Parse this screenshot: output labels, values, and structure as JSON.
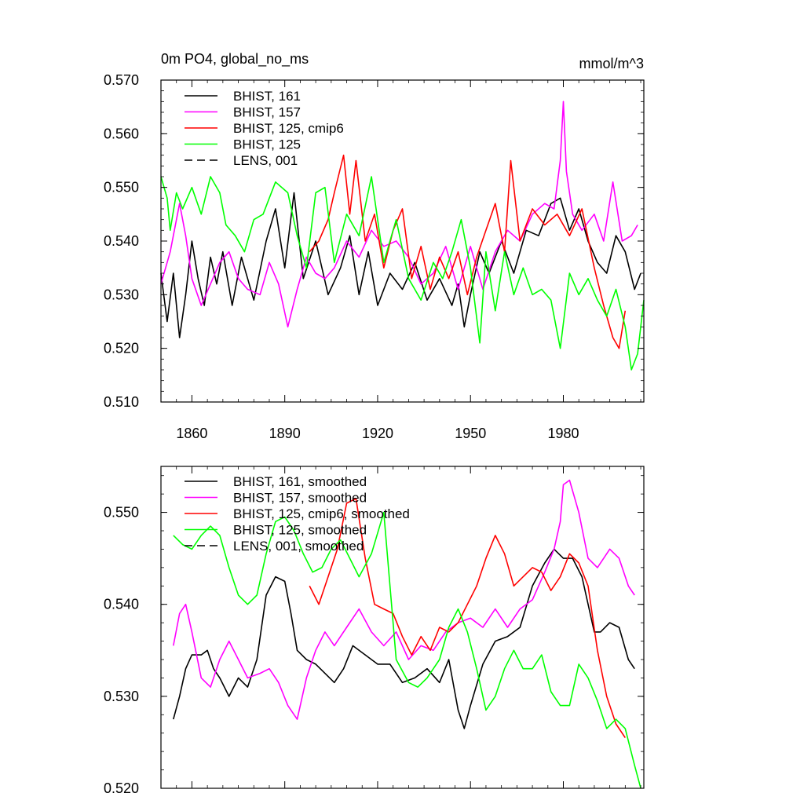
{
  "chart_data": [
    {
      "type": "line",
      "title": "0m PO4, global_no_ms",
      "units_label": "mmol/m^3",
      "xlim": [
        1850,
        2006
      ],
      "ylim": [
        0.51,
        0.57
      ],
      "yticks": [
        "0.510",
        "0.520",
        "0.530",
        "0.540",
        "0.550",
        "0.560",
        "0.570"
      ],
      "xticks": [
        "1860",
        "1890",
        "1920",
        "1950",
        "1980"
      ],
      "legend": {
        "position": "top-left"
      },
      "series": [
        {
          "name": "BHIST, 161",
          "color": "#000000",
          "dash": "solid",
          "x": [
            1850,
            1852,
            1854,
            1856,
            1858,
            1860,
            1862,
            1864,
            1866,
            1868,
            1870,
            1873,
            1876,
            1880,
            1884,
            1887,
            1890,
            1893,
            1896,
            1900,
            1904,
            1908,
            1911,
            1914,
            1917,
            1920,
            1924,
            1928,
            1932,
            1936,
            1940,
            1944,
            1946,
            1948,
            1950,
            1953,
            1956,
            1960,
            1964,
            1968,
            1972,
            1976,
            1979,
            1982,
            1985,
            1988,
            1991,
            1994,
            1997,
            2000,
            2003,
            2005
          ],
          "y": [
            0.534,
            0.525,
            0.534,
            0.522,
            0.53,
            0.54,
            0.533,
            0.528,
            0.537,
            0.532,
            0.538,
            0.528,
            0.537,
            0.529,
            0.54,
            0.546,
            0.535,
            0.549,
            0.533,
            0.54,
            0.53,
            0.535,
            0.541,
            0.53,
            0.538,
            0.528,
            0.534,
            0.531,
            0.536,
            0.529,
            0.533,
            0.528,
            0.532,
            0.524,
            0.53,
            0.538,
            0.534,
            0.54,
            0.534,
            0.542,
            0.541,
            0.547,
            0.548,
            0.542,
            0.546,
            0.54,
            0.536,
            0.534,
            0.541,
            0.538,
            0.531,
            0.534
          ]
        },
        {
          "name": "BHIST, 157",
          "color": "#ff00ff",
          "dash": "solid",
          "x": [
            1850,
            1853,
            1856,
            1858,
            1860,
            1863,
            1866,
            1869,
            1872,
            1875,
            1878,
            1882,
            1885,
            1888,
            1891,
            1894,
            1897,
            1900,
            1903,
            1906,
            1910,
            1914,
            1918,
            1922,
            1926,
            1930,
            1934,
            1938,
            1942,
            1946,
            1950,
            1954,
            1958,
            1962,
            1966,
            1970,
            1974,
            1977,
            1979,
            1980,
            1981,
            1983,
            1986,
            1990,
            1993,
            1996,
            1999,
            2002,
            2004
          ],
          "y": [
            0.532,
            0.538,
            0.547,
            0.541,
            0.533,
            0.528,
            0.532,
            0.536,
            0.538,
            0.533,
            0.531,
            0.53,
            0.536,
            0.532,
            0.524,
            0.531,
            0.537,
            0.534,
            0.533,
            0.535,
            0.54,
            0.537,
            0.542,
            0.539,
            0.54,
            0.537,
            0.532,
            0.534,
            0.539,
            0.531,
            0.539,
            0.531,
            0.538,
            0.542,
            0.54,
            0.545,
            0.547,
            0.546,
            0.555,
            0.566,
            0.553,
            0.545,
            0.542,
            0.545,
            0.54,
            0.551,
            0.54,
            0.541,
            0.543
          ]
        },
        {
          "name": "BHIST, 125, cmip6",
          "color": "#ff0000",
          "dash": "solid",
          "x": [
            1898,
            1901,
            1904,
            1906,
            1909,
            1911,
            1913,
            1916,
            1919,
            1922,
            1925,
            1928,
            1931,
            1934,
            1937,
            1940,
            1943,
            1946,
            1949,
            1952,
            1955,
            1958,
            1961,
            1963,
            1966,
            1970,
            1974,
            1978,
            1982,
            1986,
            1990,
            1993,
            1996,
            1998,
            2000
          ],
          "y": [
            0.538,
            0.54,
            0.544,
            0.549,
            0.556,
            0.545,
            0.555,
            0.54,
            0.545,
            0.535,
            0.542,
            0.546,
            0.533,
            0.539,
            0.531,
            0.537,
            0.533,
            0.538,
            0.53,
            0.537,
            0.542,
            0.547,
            0.538,
            0.555,
            0.54,
            0.546,
            0.543,
            0.545,
            0.541,
            0.546,
            0.535,
            0.528,
            0.522,
            0.52,
            0.527
          ]
        },
        {
          "name": "BHIST, 125",
          "color": "#00ff00",
          "dash": "solid",
          "x": [
            1850,
            1852,
            1853,
            1855,
            1857,
            1860,
            1863,
            1866,
            1869,
            1871,
            1874,
            1877,
            1880,
            1883,
            1887,
            1891,
            1894,
            1897,
            1900,
            1903,
            1906,
            1910,
            1914,
            1918,
            1922,
            1926,
            1930,
            1934,
            1938,
            1941,
            1944,
            1947,
            1950,
            1953,
            1955,
            1958,
            1961,
            1964,
            1967,
            1970,
            1973,
            1976,
            1979,
            1982,
            1985,
            1988,
            1991,
            1994,
            1997,
            2000,
            2002,
            2004,
            2006
          ],
          "y": [
            0.552,
            0.548,
            0.542,
            0.549,
            0.546,
            0.55,
            0.545,
            0.552,
            0.549,
            0.543,
            0.541,
            0.538,
            0.544,
            0.545,
            0.551,
            0.549,
            0.541,
            0.535,
            0.549,
            0.55,
            0.536,
            0.545,
            0.541,
            0.552,
            0.536,
            0.544,
            0.533,
            0.529,
            0.536,
            0.533,
            0.538,
            0.544,
            0.535,
            0.521,
            0.538,
            0.527,
            0.538,
            0.53,
            0.535,
            0.53,
            0.531,
            0.529,
            0.52,
            0.534,
            0.53,
            0.533,
            0.529,
            0.526,
            0.531,
            0.524,
            0.516,
            0.519,
            0.529
          ]
        },
        {
          "name": "LENS, 001",
          "color": "#000000",
          "dash": "dashed",
          "x": [],
          "y": []
        }
      ]
    },
    {
      "type": "line",
      "title": "",
      "xlim": [
        1850,
        2006
      ],
      "ylim": [
        0.52,
        0.555
      ],
      "yticks": [
        "0.520",
        "0.530",
        "0.540",
        "0.550"
      ],
      "xticks": [],
      "legend": {
        "position": "top-left"
      },
      "series": [
        {
          "name": "BHIST, 161, smoothed",
          "color": "#000000",
          "dash": "solid",
          "x": [
            1854,
            1856,
            1858,
            1860,
            1863,
            1865,
            1867,
            1869,
            1872,
            1875,
            1878,
            1881,
            1884,
            1887,
            1890,
            1892,
            1894,
            1897,
            1900,
            1903,
            1906,
            1909,
            1912,
            1916,
            1920,
            1924,
            1928,
            1932,
            1936,
            1940,
            1943,
            1946,
            1948,
            1950,
            1954,
            1958,
            1962,
            1966,
            1970,
            1974,
            1977,
            1980,
            1983,
            1986,
            1990,
            1992,
            1995,
            1998,
            2001,
            2003
          ],
          "y": [
            0.5275,
            0.53,
            0.533,
            0.5345,
            0.5345,
            0.535,
            0.533,
            0.532,
            0.53,
            0.532,
            0.531,
            0.534,
            0.541,
            0.543,
            0.5425,
            0.539,
            0.535,
            0.534,
            0.5335,
            0.5325,
            0.5315,
            0.533,
            0.5355,
            0.5345,
            0.5335,
            0.5335,
            0.5315,
            0.532,
            0.533,
            0.5315,
            0.534,
            0.5285,
            0.5265,
            0.529,
            0.5335,
            0.536,
            0.5365,
            0.5375,
            0.542,
            0.5445,
            0.546,
            0.545,
            0.545,
            0.543,
            0.537,
            0.537,
            0.538,
            0.5375,
            0.534,
            0.533
          ]
        },
        {
          "name": "BHIST, 157, smoothed",
          "color": "#ff00ff",
          "dash": "solid",
          "x": [
            1854,
            1856,
            1858,
            1860,
            1863,
            1866,
            1869,
            1872,
            1875,
            1878,
            1882,
            1885,
            1888,
            1891,
            1894,
            1897,
            1900,
            1903,
            1906,
            1910,
            1914,
            1918,
            1922,
            1926,
            1930,
            1934,
            1938,
            1942,
            1946,
            1950,
            1954,
            1958,
            1962,
            1966,
            1970,
            1974,
            1977,
            1979,
            1980,
            1982,
            1985,
            1988,
            1991,
            1995,
            1998,
            2001,
            2003
          ],
          "y": [
            0.5355,
            0.539,
            0.54,
            0.537,
            0.532,
            0.531,
            0.534,
            0.536,
            0.534,
            0.532,
            0.5325,
            0.533,
            0.5315,
            0.529,
            0.5275,
            0.532,
            0.535,
            0.537,
            0.5355,
            0.5375,
            0.5395,
            0.537,
            0.5355,
            0.537,
            0.534,
            0.5355,
            0.535,
            0.537,
            0.538,
            0.5385,
            0.5375,
            0.5395,
            0.5375,
            0.5395,
            0.5405,
            0.5435,
            0.546,
            0.549,
            0.553,
            0.5535,
            0.55,
            0.545,
            0.544,
            0.546,
            0.545,
            0.542,
            0.541
          ]
        },
        {
          "name": "BHIST, 125, cmip6, smoothed",
          "color": "#ff0000",
          "dash": "solid",
          "x": [
            1898,
            1901,
            1904,
            1907,
            1910,
            1913,
            1916,
            1919,
            1922,
            1925,
            1928,
            1931,
            1934,
            1937,
            1940,
            1943,
            1946,
            1949,
            1952,
            1955,
            1958,
            1961,
            1964,
            1967,
            1970,
            1973,
            1976,
            1979,
            1982,
            1985,
            1988,
            1991,
            1994,
            1997,
            2000
          ],
          "y": [
            0.542,
            0.54,
            0.543,
            0.546,
            0.551,
            0.5515,
            0.545,
            0.54,
            0.5395,
            0.539,
            0.5365,
            0.5345,
            0.5365,
            0.535,
            0.5375,
            0.537,
            0.538,
            0.54,
            0.542,
            0.545,
            0.5475,
            0.5455,
            0.542,
            0.543,
            0.544,
            0.5435,
            0.5415,
            0.543,
            0.5455,
            0.5445,
            0.542,
            0.535,
            0.53,
            0.527,
            0.5255
          ]
        },
        {
          "name": "BHIST, 125, smoothed",
          "color": "#00ff00",
          "dash": "solid",
          "x": [
            1854,
            1857,
            1860,
            1863,
            1866,
            1869,
            1872,
            1875,
            1878,
            1881,
            1884,
            1887,
            1890,
            1893,
            1896,
            1899,
            1902,
            1905,
            1908,
            1911,
            1914,
            1918,
            1922,
            1926,
            1930,
            1933,
            1936,
            1940,
            1943,
            1946,
            1949,
            1952,
            1955,
            1958,
            1961,
            1964,
            1967,
            1970,
            1973,
            1976,
            1979,
            1982,
            1985,
            1988,
            1991,
            1994,
            1997,
            2000,
            2003,
            2005
          ],
          "y": [
            0.5475,
            0.5465,
            0.546,
            0.5475,
            0.5485,
            0.5475,
            0.544,
            0.541,
            0.54,
            0.541,
            0.5455,
            0.549,
            0.5495,
            0.548,
            0.5455,
            0.5435,
            0.544,
            0.546,
            0.547,
            0.545,
            0.543,
            0.5455,
            0.55,
            0.534,
            0.5315,
            0.531,
            0.532,
            0.534,
            0.5375,
            0.5395,
            0.537,
            0.533,
            0.5285,
            0.53,
            0.533,
            0.535,
            0.533,
            0.533,
            0.5345,
            0.5305,
            0.529,
            0.529,
            0.5335,
            0.532,
            0.5295,
            0.5265,
            0.5275,
            0.5265,
            0.5225,
            0.52
          ]
        },
        {
          "name": "LENS, 001, smoothed",
          "color": "#000000",
          "dash": "dashed",
          "x": [],
          "y": []
        }
      ]
    }
  ]
}
